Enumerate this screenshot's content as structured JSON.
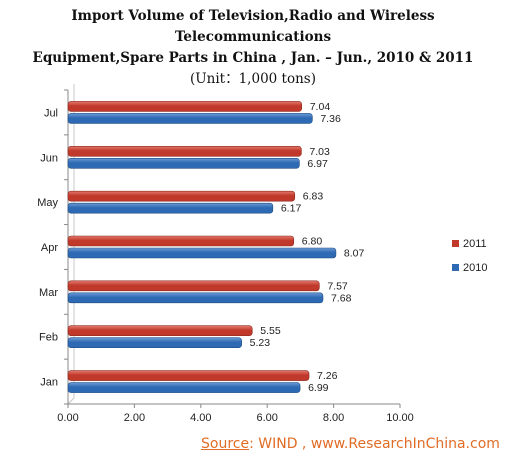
{
  "title": {
    "line1": "Import Volume of Television,Radio and Wireless Telecommunications",
    "line2": "Equipment,Spare Parts in China , Jan. – Jun., 2010 & 2011",
    "line3": "(Unit：1,000 tons)"
  },
  "source": {
    "label": "Source",
    "text": ": WIND , www.ResearchInChina.com"
  },
  "colors": {
    "series_2011": "#c0392b",
    "series_2010": "#2e6ab3"
  },
  "chart_data": {
    "type": "bar",
    "orientation": "horizontal",
    "categories": [
      "Jul",
      "Jun",
      "May",
      "Apr",
      "Mar",
      "Feb",
      "Jan"
    ],
    "series": [
      {
        "name": "2011",
        "values": [
          7.04,
          7.03,
          6.83,
          6.8,
          7.57,
          5.55,
          7.26
        ]
      },
      {
        "name": "2010",
        "values": [
          7.36,
          6.97,
          6.17,
          8.07,
          7.68,
          5.23,
          6.99
        ]
      }
    ],
    "value_labels": {
      "2011": [
        "7.04",
        "7.03",
        "6.83",
        "6.80",
        "7.57",
        "5.55",
        "7.26"
      ],
      "2010": [
        "7.36",
        "6.97",
        "6.17",
        "8.07",
        "7.68",
        "5.23",
        "6.99"
      ]
    },
    "xlim": [
      0,
      10
    ],
    "xticks": [
      "0.00",
      "2.00",
      "4.00",
      "6.00",
      "8.00",
      "10.00"
    ],
    "grid": false,
    "legend_position": "right"
  }
}
